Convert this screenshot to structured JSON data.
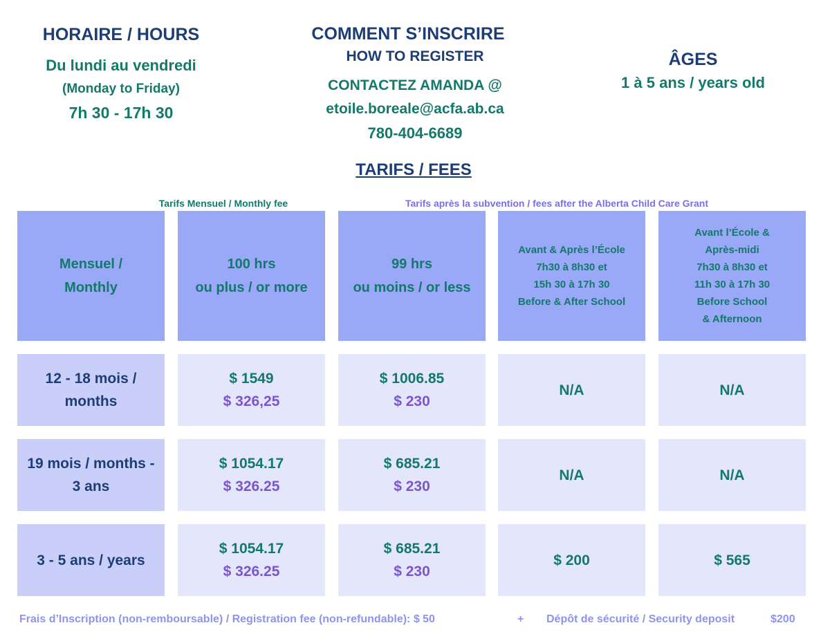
{
  "hours": {
    "title": "HORAIRE / HOURS",
    "days_fr": "Du lundi au vendredi",
    "days_en": "(Monday to Friday)",
    "time": "7h 30 - 17h 30"
  },
  "register": {
    "title": "COMMENT S’INSCRIRE",
    "subtitle": "HOW TO REGISTER",
    "contact": "CONTACTEZ AMANDA @",
    "email": "etoile.boreale@acfa.ab.ca",
    "phone": "780-404-6689"
  },
  "ages": {
    "title": "ÂGES",
    "range": "1 à 5 ans / years old"
  },
  "fees": {
    "title": "TARIFS / FEES",
    "monthly_note": "Tarifs Mensuel / Monthly fee",
    "subsidy_note": "Tarifs après la subvention / fees after the Alberta Child Care Grant",
    "table": {
      "header": [
        [
          "Mensuel /",
          "Monthly"
        ],
        [
          "100 hrs",
          "ou plus / or more"
        ],
        [
          "99 hrs",
          "ou moins / or less"
        ],
        [
          "Avant & Après l’École",
          "7h30 à 8h30 et",
          "15h 30 à 17h 30",
          "Before & After School"
        ],
        [
          "Avant l’École &",
          "Après-midi",
          "7h30 à 8h30 et",
          "11h 30 à 17h 30",
          "Before School",
          "& Afternoon"
        ]
      ],
      "rows": [
        [
          [
            "12 - 18 mois /",
            "months"
          ],
          [
            "$ 1549",
            "$ 326,25"
          ],
          [
            "$ 1006.85",
            "$ 230"
          ],
          [
            "N/A"
          ],
          [
            "N/A"
          ]
        ],
        [
          [
            "19 mois / months -",
            "3 ans"
          ],
          [
            "$ 1054.17",
            "$ 326.25"
          ],
          [
            "$ 685.21",
            "$ 230"
          ],
          [
            "N/A"
          ],
          [
            "N/A"
          ]
        ],
        [
          [
            "3 - 5 ans / years"
          ],
          [
            "$ 1054.17",
            "$ 326.25"
          ],
          [
            "$ 685.21",
            "$ 230"
          ],
          [
            "$ 200"
          ],
          [
            "$ 565"
          ]
        ]
      ]
    }
  },
  "footer": {
    "registration": "Frais d’Inscription (non-remboursable) / Registration fee (non-refundable): $ 50",
    "plus": "+",
    "deposit": "Dépôt de sécurité / Security deposit",
    "deposit_amount": "$200"
  }
}
